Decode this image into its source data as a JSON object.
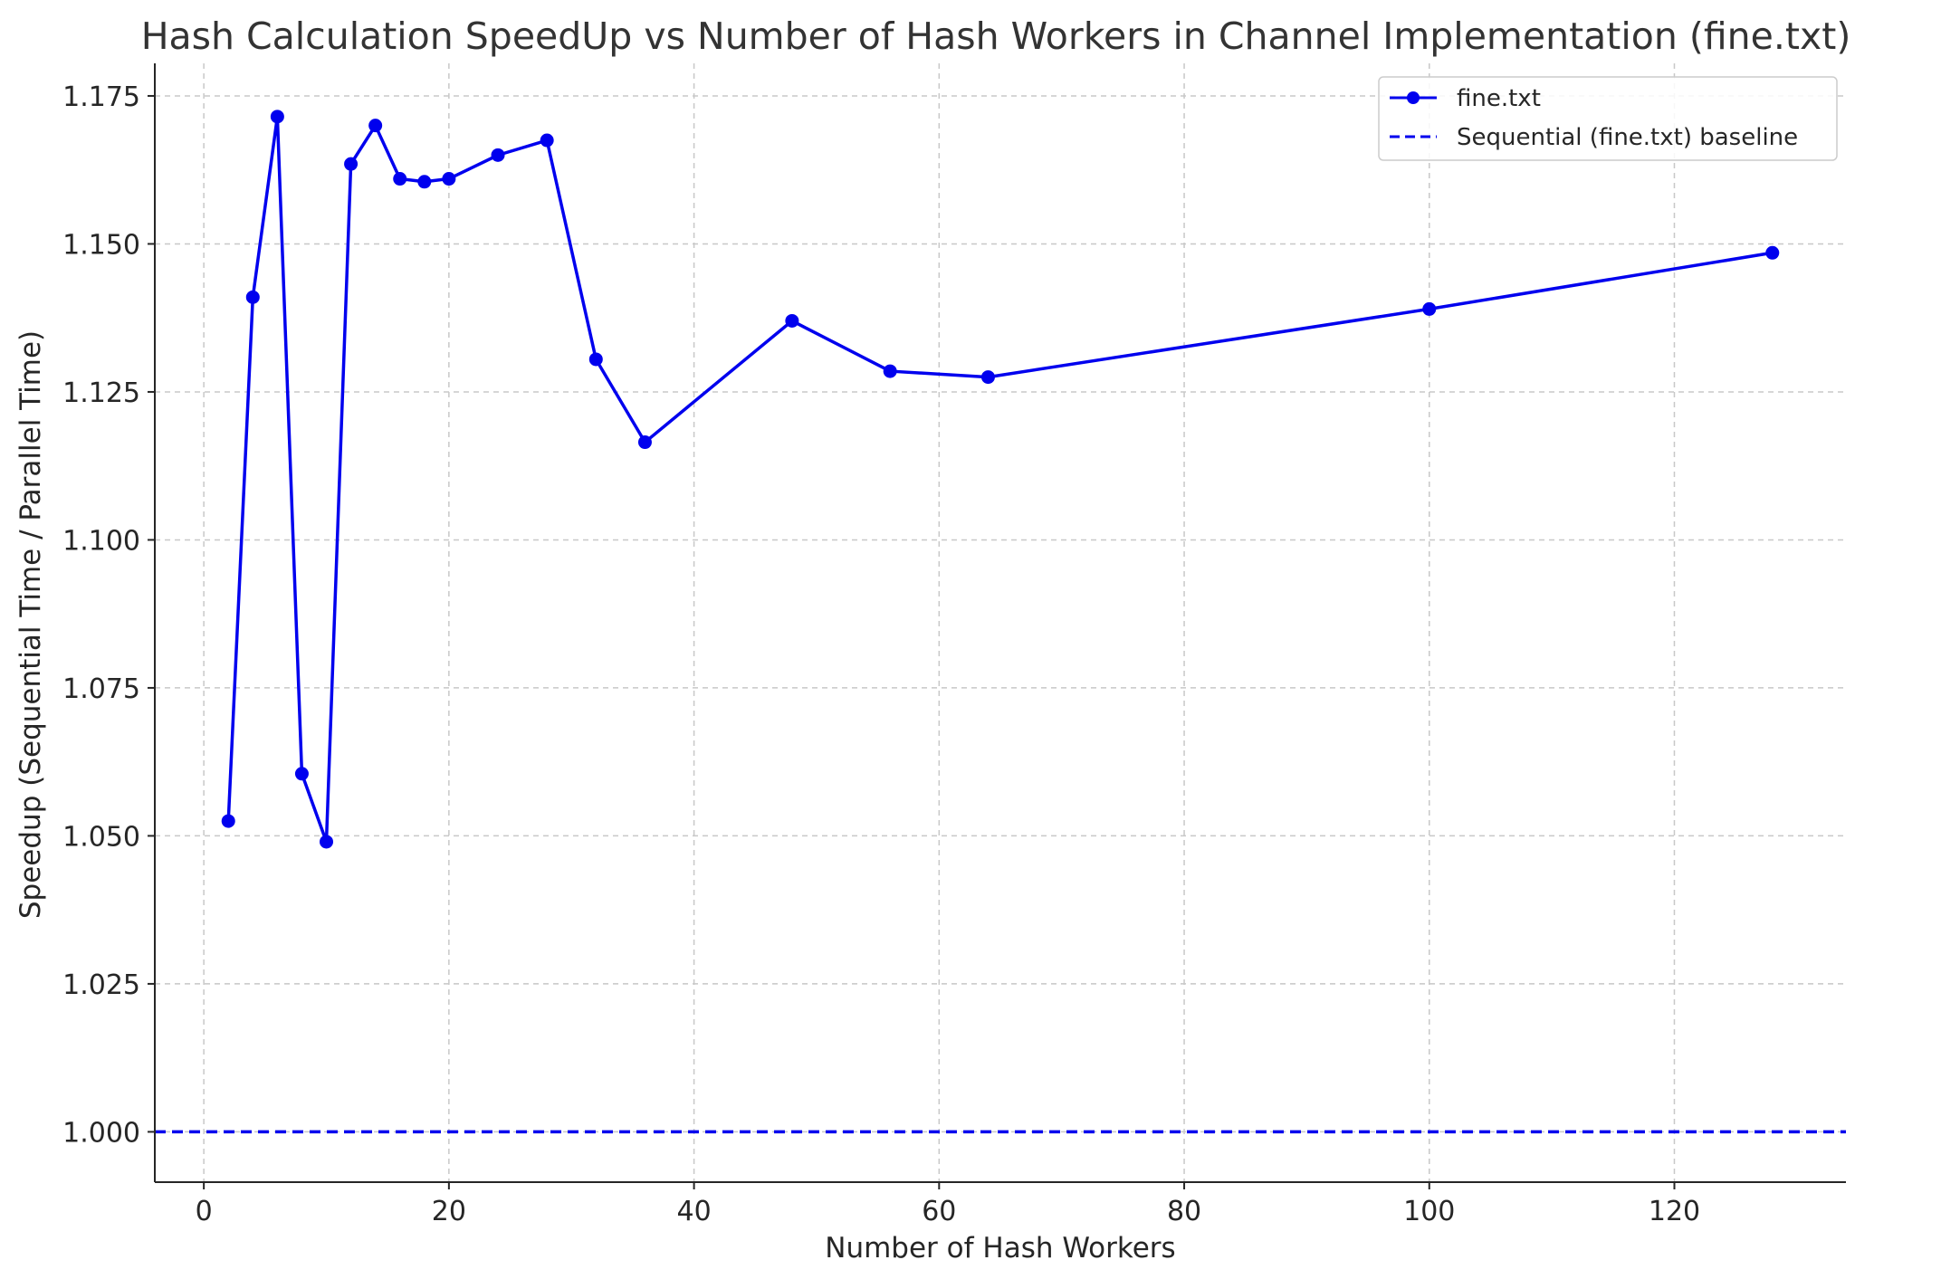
{
  "chart_data": {
    "type": "line",
    "title": "Hash Calculation SpeedUp vs Number of Hash Workers in Channel Implementation (fine.txt)",
    "xlabel": "Number of Hash Workers",
    "ylabel": "Speedup (Sequential Time / Parallel Time)",
    "xlim": [
      -4,
      134
    ],
    "ylim": [
      0.9915,
      1.1805
    ],
    "x_ticks": [
      0,
      20,
      40,
      60,
      80,
      100,
      120
    ],
    "y_ticks": [
      1.0,
      1.025,
      1.05,
      1.075,
      1.1,
      1.125,
      1.15,
      1.175
    ],
    "x_tick_labels": [
      "0",
      "20",
      "40",
      "60",
      "80",
      "100",
      "120"
    ],
    "y_tick_labels": [
      "1.000",
      "1.025",
      "1.050",
      "1.075",
      "1.100",
      "1.125",
      "1.150",
      "1.175"
    ],
    "grid": true,
    "legend_position": "top-right",
    "series": [
      {
        "name": "fine.txt",
        "color": "#0000ee",
        "style": "solid-with-markers",
        "x": [
          2,
          4,
          6,
          8,
          10,
          12,
          14,
          16,
          18,
          20,
          24,
          28,
          32,
          36,
          48,
          56,
          64,
          100,
          128
        ],
        "y": [
          1.0525,
          1.141,
          1.1715,
          1.0605,
          1.049,
          1.1635,
          1.17,
          1.161,
          1.1605,
          1.161,
          1.165,
          1.1675,
          1.1305,
          1.1165,
          1.137,
          1.1285,
          1.1275,
          1.139,
          1.1485
        ]
      },
      {
        "name": "Sequential (fine.txt) baseline",
        "color": "#0000ee",
        "style": "dashed",
        "y_constant": 1.0
      }
    ]
  }
}
